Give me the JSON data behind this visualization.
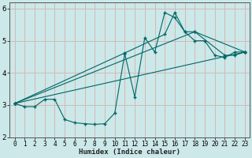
{
  "xlabel": "Humidex (Indice chaleur)",
  "bg_color": "#cce8e8",
  "line_color": "#006666",
  "grid_color": "#d4b8b8",
  "xlim": [
    -0.5,
    23.5
  ],
  "ylim": [
    2,
    6.2
  ],
  "yticks": [
    2,
    3,
    4,
    5,
    6
  ],
  "xticks": [
    0,
    1,
    2,
    3,
    4,
    5,
    6,
    7,
    8,
    9,
    10,
    11,
    12,
    13,
    14,
    15,
    16,
    17,
    18,
    19,
    20,
    21,
    22,
    23
  ],
  "curve1_x": [
    0,
    1,
    2,
    3,
    4,
    5,
    6,
    7,
    8,
    9,
    10,
    11,
    12,
    13,
    14,
    15,
    16,
    17,
    18,
    19,
    20,
    21,
    22,
    23
  ],
  "curve1_y": [
    3.05,
    2.95,
    2.95,
    3.18,
    3.18,
    2.55,
    2.45,
    2.42,
    2.4,
    2.42,
    2.75,
    4.6,
    3.25,
    5.1,
    4.65,
    5.88,
    5.72,
    5.28,
    5.0,
    5.0,
    4.55,
    4.48,
    4.65,
    4.65
  ],
  "curve2_x": [
    0,
    11,
    15,
    16,
    17,
    18,
    21,
    22,
    23
  ],
  "curve2_y": [
    3.05,
    4.62,
    5.2,
    5.88,
    5.28,
    5.28,
    4.55,
    4.55,
    4.65
  ],
  "curve3_x": [
    0,
    23
  ],
  "curve3_y": [
    3.05,
    4.65
  ],
  "curve4_x": [
    0,
    18,
    23
  ],
  "curve4_y": [
    3.05,
    5.28,
    4.65
  ]
}
